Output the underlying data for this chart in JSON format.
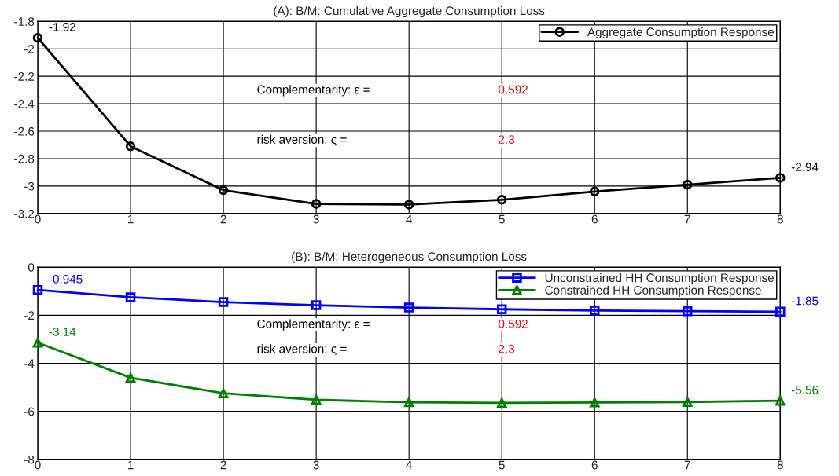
{
  "chart_data": [
    {
      "type": "line",
      "title": "(A): B/M: Cumulative Aggregate Consumption Loss",
      "x": [
        0,
        1,
        2,
        3,
        4,
        5,
        6,
        7,
        8
      ],
      "xlim": [
        0,
        8
      ],
      "xticks": [
        0,
        1,
        2,
        3,
        4,
        5,
        6,
        7,
        8
      ],
      "ylim": [
        -3.2,
        -1.8
      ],
      "yticks": [
        -3.2,
        -3,
        -2.8,
        -2.6,
        -2.4,
        -2.2,
        -2,
        -1.8
      ],
      "grid": true,
      "legend": "top right",
      "series": [
        {
          "name": "Aggregate Consumption Response",
          "color": "#000000",
          "marker": "circle",
          "values": [
            -1.92,
            -2.71,
            -3.03,
            -3.13,
            -3.135,
            -3.1,
            -3.04,
            -2.99,
            -2.94
          ],
          "value_labels": [
            "-1.92",
            null,
            null,
            null,
            null,
            null,
            null,
            null,
            "-2.94"
          ]
        }
      ],
      "annotations": [
        "Complementarity: ε =",
        "0.592",
        "risk aversion: ς =",
        "2.3"
      ]
    },
    {
      "type": "line",
      "title": "(B): B/M: Heterogeneous Consumption Loss",
      "x": [
        0,
        1,
        2,
        3,
        4,
        5,
        6,
        7,
        8
      ],
      "xlim": [
        0,
        8
      ],
      "xticks": [
        0,
        1,
        2,
        3,
        4,
        5,
        6,
        7,
        8
      ],
      "ylim": [
        -8,
        0
      ],
      "yticks": [
        -8,
        -6,
        -4,
        -2,
        0
      ],
      "grid": true,
      "legend": "top right",
      "series": [
        {
          "name": "Unconstrained HH Consumption Response",
          "color": "#0000ff",
          "marker": "square",
          "values": [
            -0.945,
            -1.25,
            -1.45,
            -1.58,
            -1.68,
            -1.75,
            -1.8,
            -1.83,
            -1.85
          ],
          "value_labels": [
            "-0.945",
            null,
            null,
            null,
            null,
            null,
            null,
            null,
            "-1.85"
          ]
        },
        {
          "name": "Constrained HH Consumption Response",
          "color": "#008000",
          "marker": "triangle",
          "values": [
            -3.14,
            -4.6,
            -5.25,
            -5.52,
            -5.62,
            -5.65,
            -5.63,
            -5.61,
            -5.56
          ],
          "value_labels": [
            "-3.14",
            null,
            null,
            null,
            null,
            null,
            null,
            null,
            "-5.56"
          ]
        }
      ],
      "annotations": [
        "Complementarity: ε =",
        "0.592",
        "risk aversion: ς =",
        "2.3"
      ]
    }
  ]
}
